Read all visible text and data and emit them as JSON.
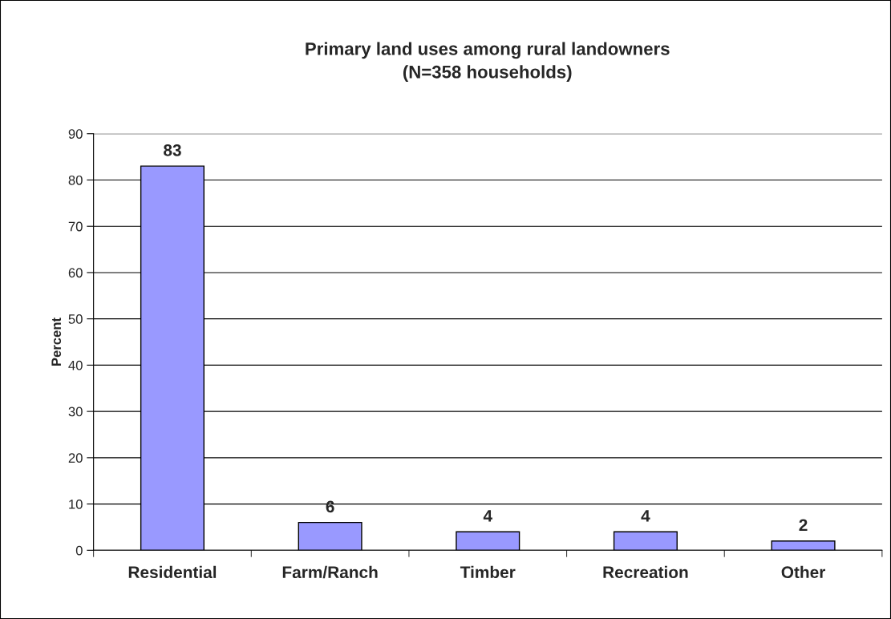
{
  "chart_data": {
    "type": "bar",
    "title": "Primary land uses among rural landowners\n(N=358 households)",
    "ylabel": "Percent",
    "categories": [
      "Residential",
      "Farm/Ranch",
      "Timber",
      "Recreation",
      "Other"
    ],
    "values": [
      83,
      6,
      4,
      4,
      2
    ],
    "color": "#9999ff",
    "ylim": [
      0,
      90
    ],
    "yticks": [
      0,
      10,
      20,
      30,
      40,
      50,
      60,
      70,
      80,
      90
    ],
    "grid": "y",
    "data_labels": true
  }
}
